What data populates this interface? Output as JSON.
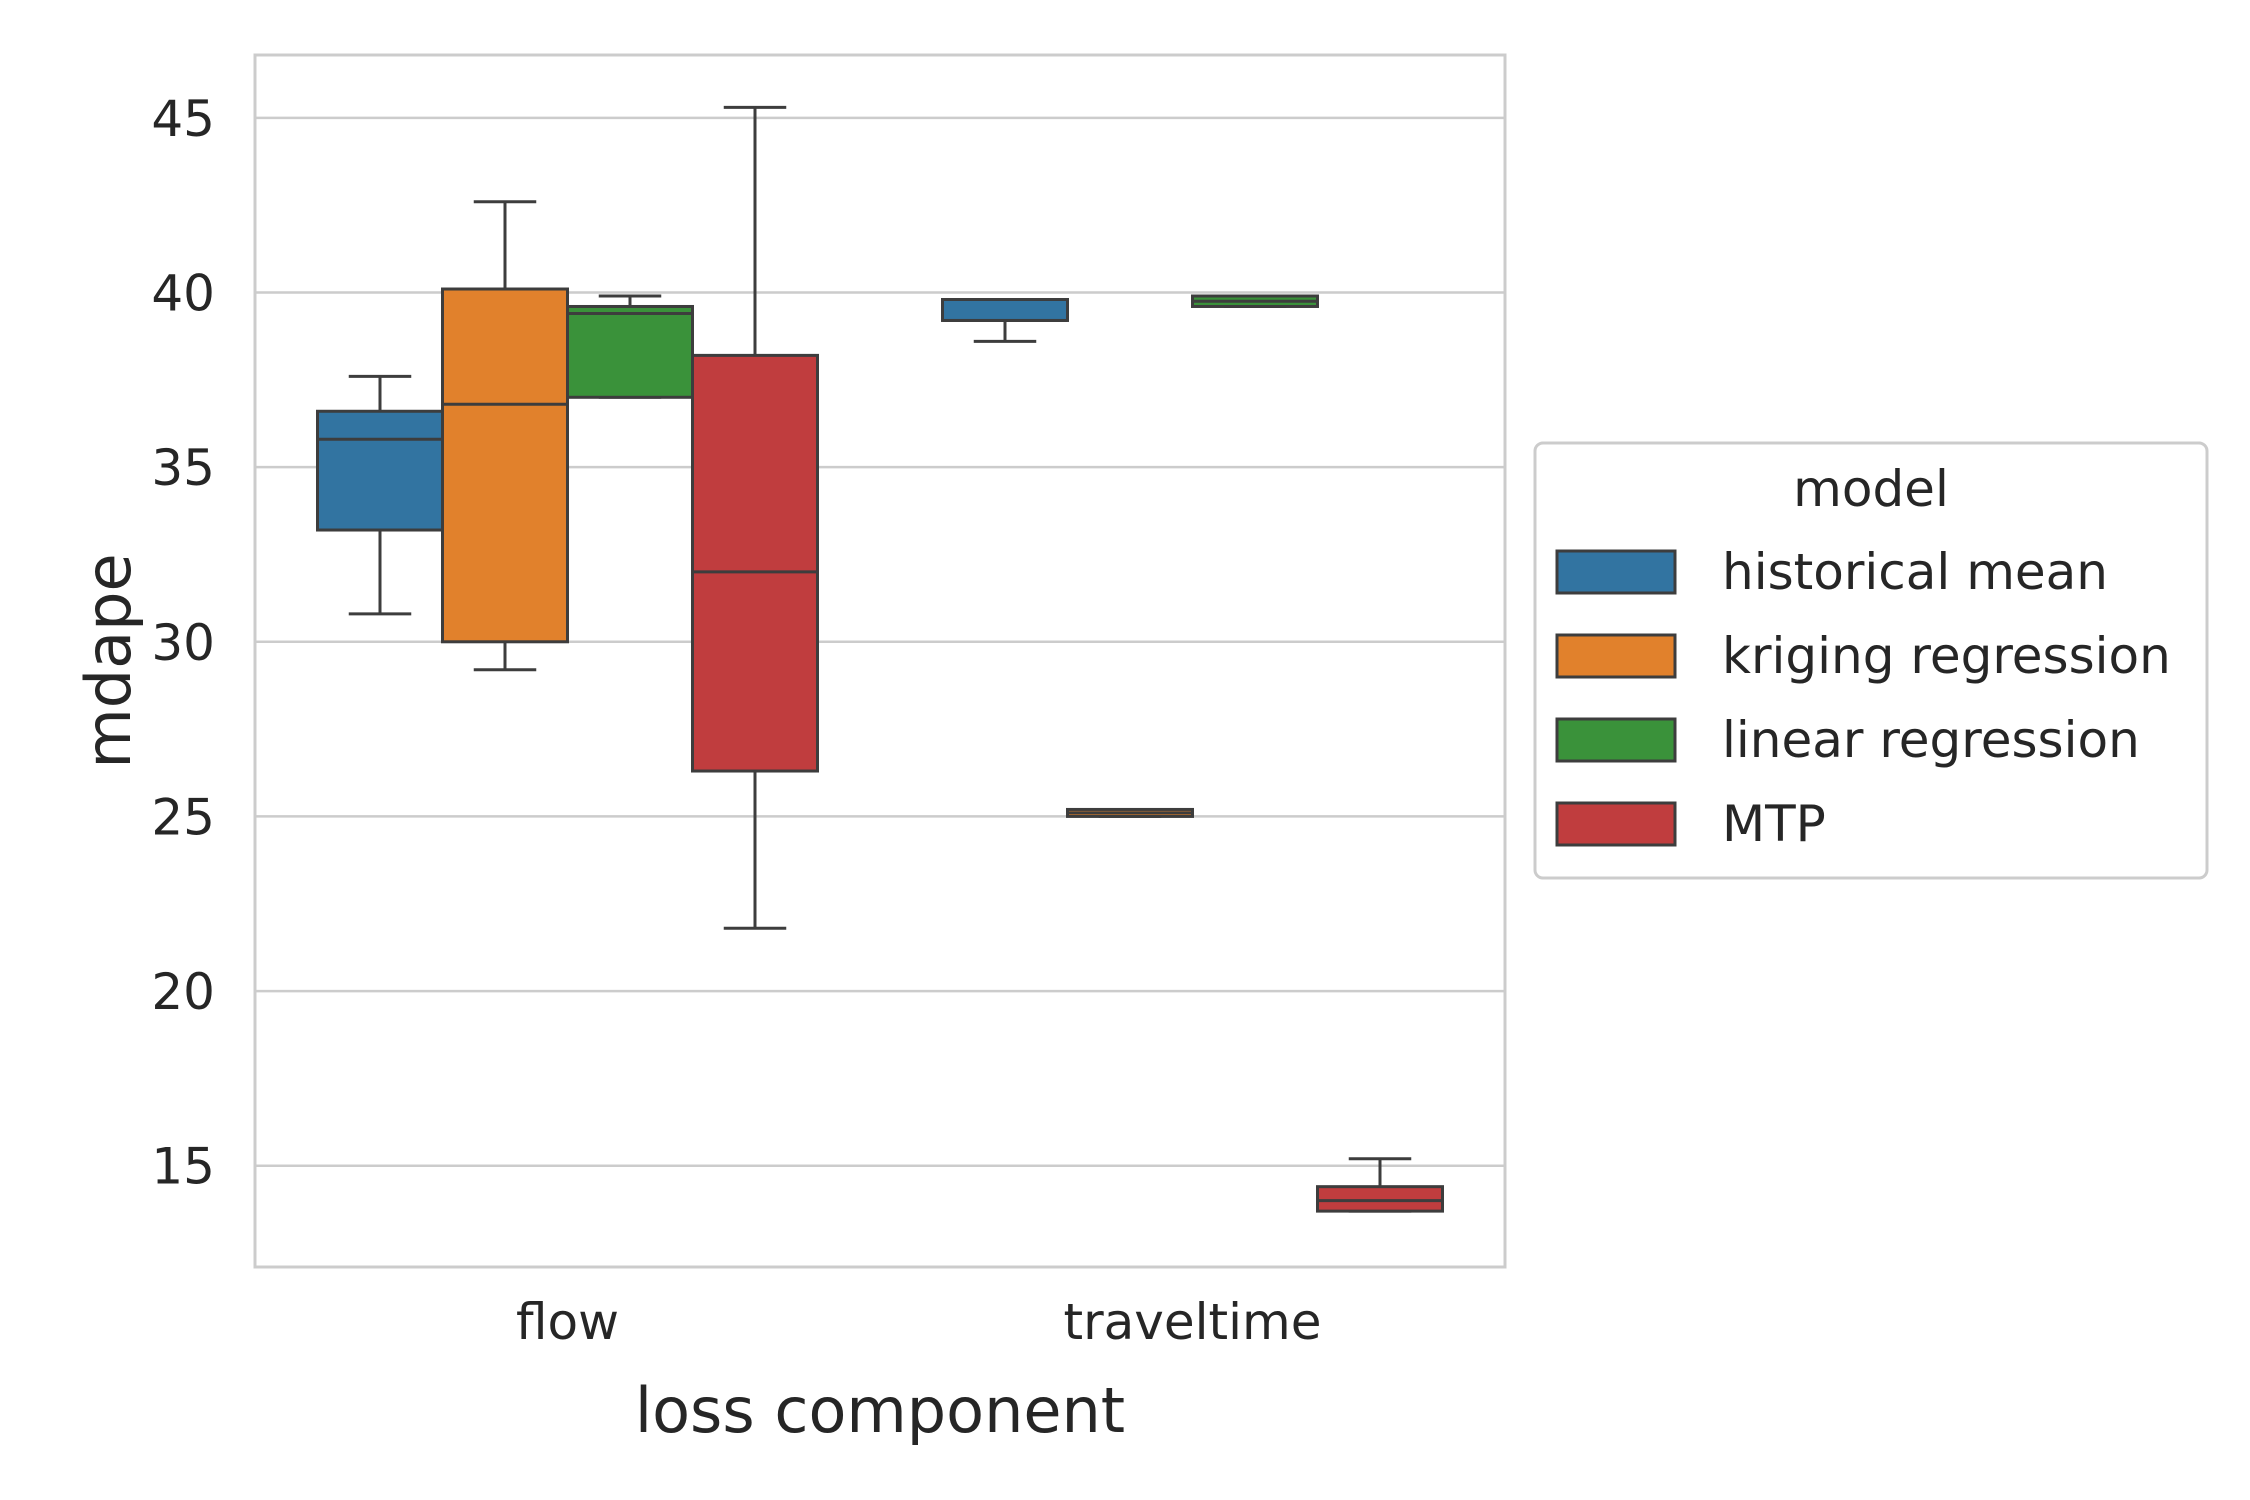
{
  "chart_data": {
    "type": "box",
    "xlabel": "loss component",
    "ylabel": "mdape",
    "categories": [
      "flow",
      "traveltime"
    ],
    "ylim": [
      12.1,
      46.8
    ],
    "yticks": [
      15,
      20,
      25,
      30,
      35,
      40,
      45
    ],
    "grid": true,
    "legend": {
      "title": "model",
      "placement": "center-right (outside)"
    },
    "series": [
      {
        "name": "historical mean",
        "color": "#3274a1",
        "boxes": [
          {
            "category": "flow",
            "whisker_low": 30.8,
            "q1": 33.2,
            "median": 35.8,
            "q3": 36.6,
            "whisker_high": 37.6
          },
          {
            "category": "traveltime",
            "whisker_low": 38.6,
            "q1": 39.2,
            "median": 39.2,
            "q3": 39.8,
            "whisker_high": 39.8
          }
        ]
      },
      {
        "name": "kriging regression",
        "color": "#e1812c",
        "boxes": [
          {
            "category": "flow",
            "whisker_low": 29.2,
            "q1": 30.0,
            "median": 36.8,
            "q3": 40.1,
            "whisker_high": 42.6
          },
          {
            "category": "traveltime",
            "whisker_low": 25.0,
            "q1": 25.0,
            "median": 25.1,
            "q3": 25.2,
            "whisker_high": 25.2
          }
        ]
      },
      {
        "name": "linear regression",
        "color": "#3a923a",
        "boxes": [
          {
            "category": "flow",
            "whisker_low": 37.0,
            "q1": 37.0,
            "median": 39.4,
            "q3": 39.6,
            "whisker_high": 39.9
          },
          {
            "category": "traveltime",
            "whisker_low": 39.6,
            "q1": 39.6,
            "median": 39.75,
            "q3": 39.9,
            "whisker_high": 39.9
          }
        ]
      },
      {
        "name": "MTP",
        "color": "#c03d3e",
        "boxes": [
          {
            "category": "flow",
            "whisker_low": 21.8,
            "q1": 26.3,
            "median": 32.0,
            "q3": 38.2,
            "whisker_high": 45.3
          },
          {
            "category": "traveltime",
            "whisker_low": 13.7,
            "q1": 13.7,
            "median": 14.0,
            "q3": 14.4,
            "whisker_high": 15.2
          }
        ]
      }
    ]
  }
}
